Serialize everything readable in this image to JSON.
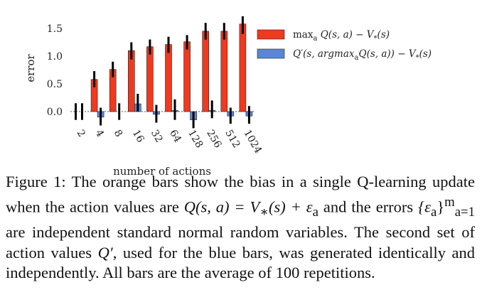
{
  "chart_data": {
    "type": "bar",
    "categories": [
      "2",
      "4",
      "8",
      "16",
      "32",
      "64",
      "128",
      "256",
      "512",
      "1024"
    ],
    "series": [
      {
        "name": "max_a Q(s,a) − V_*(s)",
        "color": "#f0391e",
        "values": [
          0.0,
          0.58,
          0.76,
          1.1,
          1.17,
          1.21,
          1.26,
          1.45,
          1.45,
          1.58
        ],
        "error_low": [
          -0.15,
          0.44,
          0.62,
          0.94,
          1.03,
          1.06,
          1.12,
          1.3,
          1.3,
          1.4
        ],
        "error_high": [
          0.15,
          0.73,
          0.9,
          1.25,
          1.3,
          1.35,
          1.38,
          1.6,
          1.6,
          1.72
        ]
      },
      {
        "name": "Q′(s, argmax_a Q(s,a)) − V_*(s)",
        "color": "#5b86d8",
        "values": [
          0.0,
          -0.1,
          0.0,
          0.14,
          -0.05,
          0.02,
          -0.15,
          0.02,
          -0.08,
          -0.08
        ],
        "error_low": [
          -0.15,
          -0.25,
          -0.15,
          0.0,
          -0.2,
          -0.15,
          -0.3,
          -0.12,
          -0.22,
          -0.22
        ],
        "error_high": [
          0.15,
          0.07,
          0.15,
          0.32,
          0.12,
          0.22,
          0.0,
          0.2,
          0.07,
          0.1
        ]
      }
    ],
    "xlabel": "number of actions",
    "ylabel": "error",
    "yticks": [
      "0.0",
      "0.5",
      "1.0",
      "1.5"
    ],
    "ylim": [
      -0.15,
      1.75
    ],
    "grid": false,
    "legend_position": "right"
  },
  "legend": {
    "items": [
      {
        "prefix": "max",
        "sub": "a",
        "rest": " Q(s, a) − V",
        "sub2": "*",
        "tail": "(s)"
      },
      {
        "prefix": "Q′(s, argmax",
        "sub": "a",
        "rest": "Q(s, a)) − V",
        "sub2": "*",
        "tail": "(s)"
      }
    ]
  },
  "caption": {
    "label": "Figure 1:",
    "text1": "The orange bars show the bias in a single Q-learning update when the action values are ",
    "math1": "Q(s, a) = V",
    "math1_sub": "∗",
    "math1_tail": "(s) + ε",
    "math1_sub2": "a",
    "text2": " and the errors ",
    "math2": "{ε",
    "math2_sub": "a",
    "math2_tail": "}",
    "math2_sup": "m",
    "math2_sub2": "a=1",
    "text3": " are independent standard normal random variables. The second set of action values ",
    "math3": "Q′",
    "text4": ", used for the blue bars, was generated identically and independently. All bars are the average of 100 repetitions."
  }
}
